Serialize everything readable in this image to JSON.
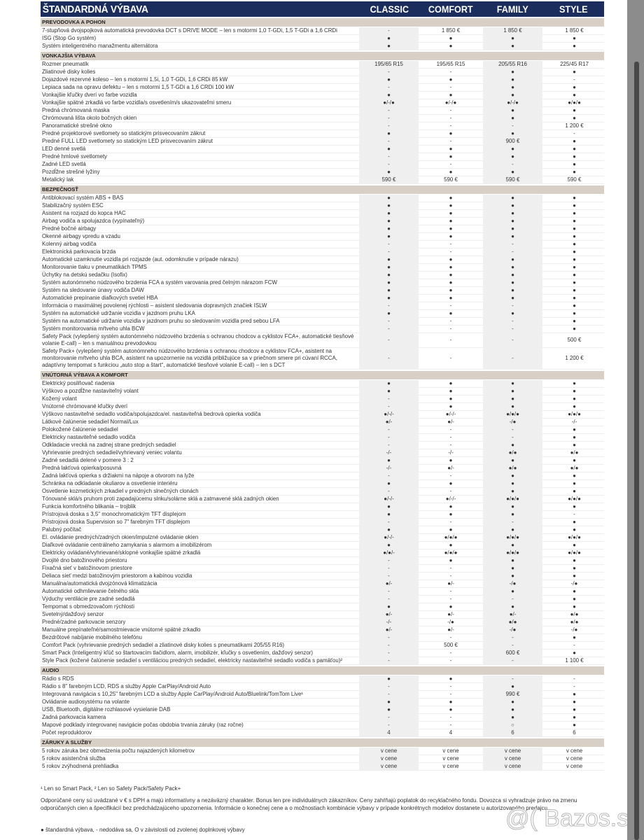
{
  "header": {
    "title": "ŠTANDARDNÁ VÝBAVA",
    "columns": [
      "CLASSIC",
      "COMFORT",
      "FAMILY",
      "STYLE"
    ]
  },
  "colors": {
    "header": "#1b2d5c",
    "section": "#d8d0c7",
    "shade": "#efefef"
  },
  "sections": [
    {
      "title": "PREVODOVKA A POHON",
      "rows": [
        {
          "label": "7-stupňová dvojspojková automatická prevodovka DCT s DRIVE MODE – len s motormi 1,0 T-GDi, 1,5 T-GDi a 1,6 CRDi",
          "values": [
            "-",
            "1 850 €",
            "1 850 €",
            "1 850 €"
          ]
        },
        {
          "label": "ISG (Stop Go systém)",
          "values": [
            "●",
            "●",
            "●",
            "●"
          ]
        },
        {
          "label": "Systém inteligentného manažmentu alternátora",
          "values": [
            "●",
            "●",
            "●",
            "●"
          ]
        }
      ]
    },
    {
      "title": "VONKAJŠIA VÝBAVA",
      "rows": [
        {
          "label": "Rozmer pneumatík",
          "values": [
            "195/65 R15",
            "195/65 R15",
            "205/55 R16",
            "225/45 R17"
          ]
        },
        {
          "label": "Zliatinové disky kolies",
          "values": [
            "-",
            "-",
            "●",
            "●"
          ]
        },
        {
          "label": "Dojazdové rezervné koleso – len s motormi 1,5i, 1,0 T-GDi, 1,6 CRDi 85 kW",
          "values": [
            "●",
            "●",
            "●",
            "-"
          ]
        },
        {
          "label": "Lepiaca sada na opravu defektu – len s motormi 1,5 T-GDi a 1,6 CRDi 100 kW",
          "values": [
            "-",
            "-",
            "●",
            "●"
          ]
        },
        {
          "label": "Vonkajšie kľučky dverí vo farbe vozidla",
          "values": [
            "●",
            "●",
            "●",
            "●"
          ]
        },
        {
          "label": "Vonkajšie spätné zrkadlá vo farbe vozidla/s osvetlením/s ukazovateľmi smeru",
          "values": [
            "●/-/●",
            "●/-/●",
            "●/-/●",
            "●/●/●"
          ]
        },
        {
          "label": "Predná chrómovaná maska",
          "values": [
            "-",
            "-",
            "●",
            "●"
          ]
        },
        {
          "label": "Chrómovaná lišta okolo bočných okien",
          "values": [
            "-",
            "-",
            "●",
            "●"
          ]
        },
        {
          "label": "Panoramatické strešné okno",
          "values": [
            "-",
            "-",
            "-",
            "1 200 €"
          ]
        },
        {
          "label": "Predné projektorové svetlomety so statickým prisvecovaním zákrut",
          "values": [
            "●",
            "●",
            "●",
            "-"
          ]
        },
        {
          "label": "Predné FULL LED svetlomety so statickým LED prisvecovaním zákrut",
          "values": [
            "-",
            "-",
            "900 €",
            "●"
          ]
        },
        {
          "label": "LED denné svetlá",
          "values": [
            "●",
            "●",
            "●",
            "●"
          ]
        },
        {
          "label": "Predné hmlové svetlomety",
          "values": [
            "-",
            "●",
            "●",
            "●"
          ]
        },
        {
          "label": "Zadné LED svetlá",
          "values": [
            "-",
            "-",
            "-",
            "●"
          ]
        },
        {
          "label": "Pozdĺžne strešné lyžiny",
          "values": [
            "●",
            "●",
            "●",
            "●"
          ]
        },
        {
          "label": "Metalický lak",
          "values": [
            "590 €",
            "590 €",
            "590 €",
            "590 €"
          ]
        }
      ]
    },
    {
      "title": "BEZPEČNOSŤ",
      "rows": [
        {
          "label": "Antiblokovací systém ABS + BAS",
          "values": [
            "●",
            "●",
            "●",
            "●"
          ]
        },
        {
          "label": "Stabilizačný systém ESC",
          "values": [
            "●",
            "●",
            "●",
            "●"
          ]
        },
        {
          "label": "Asistent na rozjazd do kopca HAC",
          "values": [
            "●",
            "●",
            "●",
            "●"
          ]
        },
        {
          "label": "Airbag vodiča a spolujazdca (vypínateľný)",
          "values": [
            "●",
            "●",
            "●",
            "●"
          ]
        },
        {
          "label": "Predné bočné airbagy",
          "values": [
            "●",
            "●",
            "●",
            "●"
          ]
        },
        {
          "label": "Okenné airbagy vpredu a vzadu",
          "values": [
            "●",
            "●",
            "●",
            "●"
          ]
        },
        {
          "label": "Kolenný airbag vodiča",
          "values": [
            "-",
            "-",
            "-",
            "●"
          ]
        },
        {
          "label": "Elektronická parkovacia brzda",
          "values": [
            "-",
            "-",
            "-",
            "●"
          ]
        },
        {
          "label": "Automatické uzamknutie vozidla pri rozjazde (aut. odomknutie v prípade nárazu)",
          "values": [
            "●",
            "●",
            "●",
            "●"
          ]
        },
        {
          "label": "Monitorovanie tlaku v pneumatikách TPMS",
          "values": [
            "●",
            "●",
            "●",
            "●"
          ]
        },
        {
          "label": "Úchytky na detskú sedačku (Isofix)",
          "values": [
            "●",
            "●",
            "●",
            "●"
          ]
        },
        {
          "label": "Systém autonómneho núdzového brzdenia FCA a systém varovania pred čelným nárazom FCW",
          "values": [
            "●",
            "●",
            "●",
            "●"
          ]
        },
        {
          "label": "Systém na sledovanie únavy vodiča DAW",
          "values": [
            "●",
            "●",
            "●",
            "●"
          ]
        },
        {
          "label": "Automatické prepínanie diaľkových svetiel HBA",
          "values": [
            "●",
            "●",
            "●",
            "●"
          ]
        },
        {
          "label": "Informácia o maximálnej povolenej rýchlosti – asistent sledovania dopravných značiek ISLW",
          "values": [
            "-",
            "-",
            "-",
            "●"
          ]
        },
        {
          "label": "Systém na automatické udržanie vozidla v jazdnom pruhu LKA",
          "values": [
            "●",
            "●",
            "●",
            "●"
          ]
        },
        {
          "label": "Systém na automatické udržanie vozidla v jazdnom pruhu so sledovaním vozidla pred sebou LFA",
          "values": [
            "-",
            "-",
            "-",
            "●"
          ]
        },
        {
          "label": "Systém monitorovania mŕtveho uhla BCW",
          "values": [
            "-",
            "-",
            "-",
            "●"
          ]
        },
        {
          "label": "Safety Pack (vylepšený systém autonómneho núdzového brzdenia s ochranou chodcov a cyklistov FCA+, automatické tiesňové volanie E-call) – len s manuálnou prevodovkou",
          "values": [
            "-",
            "-",
            "-",
            "500 €"
          ]
        },
        {
          "label": "Safety Pack+ (vylepšený systém autonómneho núdzového brzdenia s ochranou chodcov a cyklistov FCA+, asistent na monitorovanie mŕtveho uhla BCA, asistent na upozornenie na vozidlá približujúce sa v priečnom smere pri cúvaní RCCA, adaptívny tempomat s funkciou „auto stop a štart“, automatické tiesňové volanie E-call) – len s DCT",
          "values": [
            "-",
            "-",
            "-",
            "1 200 €"
          ]
        }
      ]
    },
    {
      "title": "VNÚTORNÁ VÝBAVA A KOMFORT",
      "rows": [
        {
          "label": "Elektrický posilňovač riadenia",
          "values": [
            "●",
            "●",
            "●",
            "●"
          ]
        },
        {
          "label": "Výškovo a pozdĺžne nastaviteľný volant",
          "values": [
            "●",
            "●",
            "●",
            "●"
          ]
        },
        {
          "label": "Kožený volant",
          "values": [
            "-",
            "●",
            "●",
            "●"
          ]
        },
        {
          "label": "Vnútorné chrómované kľučky dverí",
          "values": [
            "-",
            "●",
            "●",
            "●"
          ]
        },
        {
          "label": "Výškovo nastaviteľné sedadlo vodiča/spolujazdca/el. nastaviteľná bedrová opierka vodiča",
          "values": [
            "●/-/-",
            "●/-/-",
            "●/●/●",
            "●/●/●"
          ]
        },
        {
          "label": "Látkové čalúnenie sedadiel Normal/Lux",
          "values": [
            "●/-",
            "●/-",
            "-/●",
            "-/-"
          ]
        },
        {
          "label": "Polokožené čalúnenie sedadiel",
          "values": [
            "-",
            "-",
            "-",
            "●"
          ]
        },
        {
          "label": "Elektricky nastaviteľné sedadlo vodiča",
          "values": [
            "-",
            "-",
            "-",
            "●"
          ]
        },
        {
          "label": "Odkladacie vrecká na zadnej strane predných sedadiel",
          "values": [
            "-",
            "-",
            "●",
            "●"
          ]
        },
        {
          "label": "Vyhrievanie predných sedadiel/vyhrievaný veniec volantu",
          "values": [
            "-/-",
            "-/-",
            "●/●",
            "●/●"
          ]
        },
        {
          "label": "Zadné sedadlá delené v pomere 3 : 2",
          "values": [
            "●",
            "●",
            "●",
            "●"
          ]
        },
        {
          "label": "Predná lakťová opierka/posuvná",
          "values": [
            "-/-",
            "●/-",
            "●/●",
            "●/●"
          ]
        },
        {
          "label": "Zadná lakťová opierka s držiakmi na nápoje a otvorom na lyže",
          "values": [
            "-",
            "-",
            "●",
            "●"
          ]
        },
        {
          "label": "Schránka na odkladanie okuliarov a osvetlenie interiéru",
          "values": [
            "●",
            "●",
            "●",
            "●"
          ]
        },
        {
          "label": "Osvetlenie kozmetických zrkadiel v predných slnečných clonách",
          "values": [
            "-",
            "-",
            "●",
            "●"
          ]
        },
        {
          "label": "Tónované sklá/s pruhom proti zapadajúcemu slnku/solárne sklá a zatmavené sklá zadných okien",
          "values": [
            "●/-/-",
            "●/-/-",
            "●/●/●",
            "●/●/●"
          ]
        },
        {
          "label": "Funkcia komfortného blikania – trojblik",
          "values": [
            "●",
            "●",
            "●",
            "●"
          ]
        },
        {
          "label": "Prístrojová doska s 3,5\" monochromatickým TFT displejom",
          "values": [
            "●",
            "●",
            "●",
            "-"
          ]
        },
        {
          "label": "Prístrojová doska Supervision so 7\" farebným TFT displejom",
          "values": [
            "-",
            "-",
            "-",
            "●"
          ]
        },
        {
          "label": "Palubný počítač",
          "values": [
            "●",
            "●",
            "●",
            "●"
          ]
        },
        {
          "label": "El. ovládanie predných/zadných okien/impulzné ovládanie okien",
          "values": [
            "●/-/-",
            "●/●/●",
            "●/●/●",
            "●/●/●"
          ]
        },
        {
          "label": "Diaľkové ovládanie centrálneho zamykania s alarmom a imobilizérom",
          "values": [
            "●",
            "●",
            "●",
            "●"
          ]
        },
        {
          "label": "Elektricky ovládané/vyhrievané/sklopné vonkajšie spätné zrkadlá",
          "values": [
            "●/●/-",
            "●/●/●",
            "●/●/●",
            "●/●/●"
          ]
        },
        {
          "label": "Dvojité dno batožinového priestoru",
          "values": [
            "-",
            "●",
            "●",
            "●"
          ]
        },
        {
          "label": "Fixačná sieť v batožinovom priestore",
          "values": [
            "-",
            "-",
            "●",
            "●"
          ]
        },
        {
          "label": "Deliaca sieť medzi batožinovým priestorom a kabínou vozidla",
          "values": [
            "-",
            "-",
            "●",
            "●"
          ]
        },
        {
          "label": "Manuálna/automatická dvojzónová klimatizácia",
          "values": [
            "●/-",
            "●/-",
            "-/●",
            "-/●"
          ]
        },
        {
          "label": "Automatické odhmlievanie čelného skla",
          "values": [
            "-",
            "-",
            "●",
            "●"
          ]
        },
        {
          "label": "Výduchy ventilácie pre zadné sedadlá",
          "values": [
            "-",
            "-",
            "-",
            "●"
          ]
        },
        {
          "label": "Tempomat s obmedzovačom rýchlosti",
          "values": [
            "●",
            "●",
            "●",
            "●"
          ]
        },
        {
          "label": "Svetelný/dažďový senzor",
          "values": [
            "●/-",
            "●/-",
            "●/-",
            "●/●"
          ]
        },
        {
          "label": "Predné/zadné parkovacie senzory",
          "values": [
            "-/-",
            "-/●",
            "●/●",
            "●/●"
          ]
        },
        {
          "label": "Manuálne prepínateľné/samostmievacie vnútorné spätné zrkadlo",
          "values": [
            "●/-",
            "●/-",
            "-/●",
            "-/●"
          ]
        },
        {
          "label": "Bezdrôtové nabíjanie mobilného telefónu",
          "values": [
            "-",
            "-",
            "-",
            "●"
          ]
        },
        {
          "label": "Comfort Pack (vyhrievanie predných sedadiel a zliatinové disky kolies s pneumatikami 205/55 R16)",
          "values": [
            "-",
            "500 €",
            "-",
            "-"
          ]
        },
        {
          "label": "Smart Pack (Inteligentný kľúč so štartovacím tlačidlom, alarm, imobilizér, kľučky s osvetlením, dažďový senzor)",
          "values": [
            "-",
            "-",
            "600 €",
            "●"
          ]
        },
        {
          "label": "Style Pack (kožené čalúnenie sedadiel s ventiláciou predných sedadiel, elektricky nastaviteľné sedadlo vodiča s pamäťou)²",
          "values": [
            "-",
            "-",
            "-",
            "1 100 €"
          ]
        }
      ]
    },
    {
      "title": "AUDIO",
      "rows": [
        {
          "label": "Rádio s RDS",
          "values": [
            "●",
            "●",
            "-",
            "-"
          ]
        },
        {
          "label": "Rádio s 8\" farebným LCD, RDS a služby Apple CarPlay/Android Auto",
          "values": [
            "-",
            "-",
            "●",
            "-"
          ]
        },
        {
          "label": "Integrovaná navigácia s 10,25\" farebným LCD a služby Apple CarPlay/Android Auto/Bluelink/TomTom Live¹",
          "values": [
            "-",
            "-",
            "990 €",
            "●"
          ]
        },
        {
          "label": "Ovládanie audiosystému na volante",
          "values": [
            "●",
            "●",
            "●",
            "●"
          ]
        },
        {
          "label": "USB, Bluetooth, digitálne rozhlasové vysielanie DAB",
          "values": [
            "●",
            "●",
            "●",
            "●"
          ]
        },
        {
          "label": "Zadná parkovacia kamera",
          "values": [
            "-",
            "-",
            "●",
            "●"
          ]
        },
        {
          "label": "Mapové podklady integrovanej navigácie počas obdobia trvania záruky (raz ročne)",
          "values": [
            "-",
            "-",
            "○",
            "●"
          ]
        },
        {
          "label": "Počet reproduktorov",
          "values": [
            "4",
            "4",
            "6",
            "6"
          ]
        }
      ]
    },
    {
      "title": "ZÁRUKY A SLUŽBY",
      "rows": [
        {
          "label": "5 rokov záruka bez obmedzenia počtu najazdených kilometrov",
          "values": [
            "v cene",
            "v cene",
            "v cene",
            "v cene"
          ]
        },
        {
          "label": "5 rokov asistenčná služba",
          "values": [
            "v cene",
            "v cene",
            "v cene",
            "v cene"
          ]
        },
        {
          "label": "5 rokov zvýhodnená prehliadka",
          "values": [
            "v cene",
            "v cene",
            "v cene",
            "v cene"
          ]
        }
      ]
    }
  ],
  "footer": {
    "footnotes": "¹ Len so Smart Pack, ² Len so Safety Pack/Safety Pack+",
    "disclaimer": "Odporúčané ceny sú uvádzané v € s DPH a majú informatívny a nezáväzný charakter. Bonus len pre individuálnych zákazníkov. Ceny zahŕňajú poplatok do recyklačného fondu. Dovozca si vyhradzuje právo na zmenu odporúčaných cien a špecifikácií bez predchádzajúceho upozornenia. Informácie o konečnej cene a o možnostiach kombinácie výbavy v prípade konkrétnych modelov dostanete u autorizovaného predajcu.",
    "legend": "● štandardná výbava, - nedodáva sa, O v závislosti od zvolenej doplnkovej výbavy"
  },
  "watermark": "@( Bazos.sk"
}
